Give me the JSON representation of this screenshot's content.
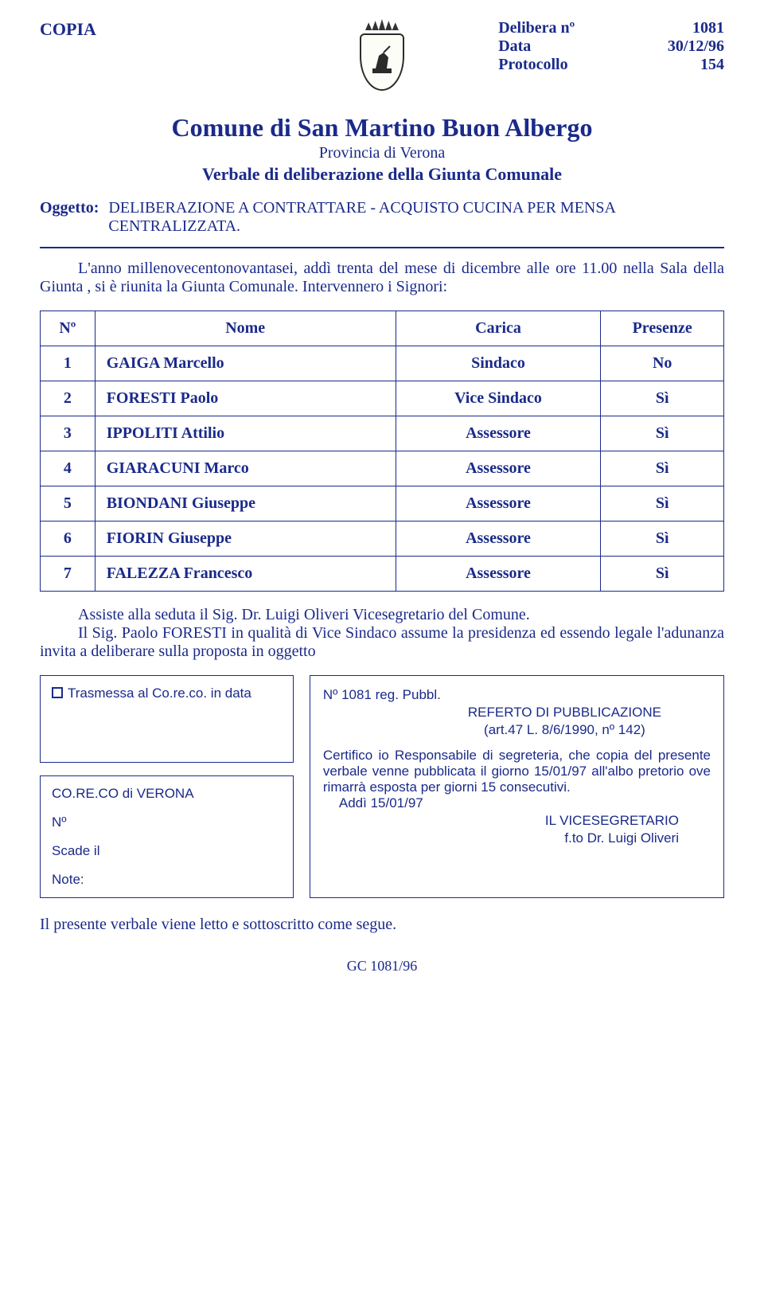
{
  "colors": {
    "text": "#1a2a8a",
    "border": "#1a2a8a",
    "bg": "#ffffff"
  },
  "header": {
    "copia": "COPIA",
    "delibera_label": "Delibera nº",
    "delibera_value": "1081",
    "data_label": "Data",
    "data_value": "30/12/96",
    "protocollo_label": "Protocollo",
    "protocollo_value": "154"
  },
  "title": "Comune di San Martino Buon Albergo",
  "subtitle": "Provincia di Verona",
  "subtitle2": "Verbale di deliberazione della Giunta Comunale",
  "oggetto": {
    "label": "Oggetto:",
    "text": "DELIBERAZIONE A CONTRATTARE - ACQUISTO CUCINA PER MENSA CENTRALIZZATA."
  },
  "preamble": "L'anno millenovecentonovantasei, addì trenta del mese di dicembre alle ore 11.00 nella Sala della Giunta , si è riunita la Giunta Comunale. Intervennero i Signori:",
  "table": {
    "headers": {
      "n": "Nº",
      "nome": "Nome",
      "carica": "Carica",
      "presenze": "Presenze"
    },
    "rows": [
      {
        "n": "1",
        "nome": "GAIGA Marcello",
        "carica": "Sindaco",
        "presenze": "No"
      },
      {
        "n": "2",
        "nome": "FORESTI Paolo",
        "carica": "Vice Sindaco",
        "presenze": "Sì"
      },
      {
        "n": "3",
        "nome": "IPPOLITI Attilio",
        "carica": "Assessore",
        "presenze": "Sì"
      },
      {
        "n": "4",
        "nome": "GIARACUNI Marco",
        "carica": "Assessore",
        "presenze": "Sì"
      },
      {
        "n": "5",
        "nome": "BIONDANI Giuseppe",
        "carica": "Assessore",
        "presenze": "Sì"
      },
      {
        "n": "6",
        "nome": "FIORIN Giuseppe",
        "carica": "Assessore",
        "presenze": "Sì"
      },
      {
        "n": "7",
        "nome": "FALEZZA Francesco",
        "carica": "Assessore",
        "presenze": "Sì"
      }
    ]
  },
  "post_text": {
    "line1": "Assiste alla seduta il Sig. Dr. Luigi Oliveri Vicesegretario del Comune.",
    "line2": "Il Sig. Paolo FORESTI in qualità di Vice Sindaco  assume la presidenza ed essendo legale l'adunanza invita a deliberare sulla proposta in oggetto"
  },
  "left_box1": {
    "text": "Trasmessa al Co.re.co. in data"
  },
  "left_box2": {
    "line1": "CO.RE.CO di VERONA",
    "line2": "Nº",
    "line3": "Scade il",
    "line4": "Note:"
  },
  "right_box": {
    "reg": "Nº 1081 reg. Pubbl.",
    "title": "REFERTO DI PUBBLICAZIONE",
    "ref": "(art.47 L. 8/6/1990, nº 142)",
    "body": "Certifico io Responsabile di segreteria, che copia del presente verbale venne pubblicata il giorno 15/01/97 all'albo pretorio ove rimarrà esposta per giorni 15 consecutivi.",
    "addi_indent": "Addì 15/01/97",
    "sig_role": "IL VICESEGRETARIO",
    "sig_name": "f.to Dr. Luigi Oliveri"
  },
  "footer_line": "Il presente verbale viene letto e sottoscritto come segue.",
  "pagefoot": "GC 1081/96"
}
